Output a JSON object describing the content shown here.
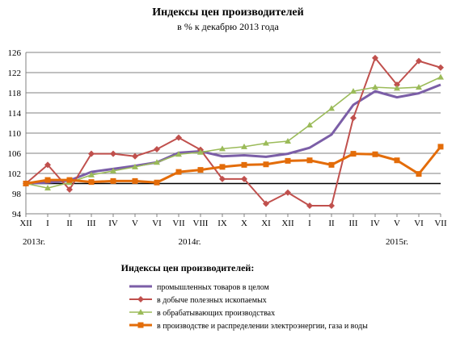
{
  "header": {
    "title": "Индексы цен производителей",
    "subtitle": "в % к декабрю 2013 года"
  },
  "chart_data": {
    "type": "line",
    "title": "Индексы цен производителей",
    "subtitle": "в % к декабрю 2013 года",
    "xlabel": "",
    "ylabel": "",
    "categories": [
      "XII",
      "I",
      "II",
      "III",
      "IV",
      "V",
      "VI",
      "VII",
      "VIII",
      "IX",
      "X",
      "XI",
      "XII",
      "I",
      "II",
      "III",
      "IV",
      "V",
      "VI",
      "VII"
    ],
    "year_labels": [
      {
        "label": "2013г.",
        "at_index": 0
      },
      {
        "label": "2014г.",
        "at_index": 7.5
      },
      {
        "label": "2015г.",
        "at_index": 17
      }
    ],
    "yticks": [
      94,
      98,
      102,
      106,
      110,
      114,
      118,
      122,
      126
    ],
    "ylim": [
      94,
      126
    ],
    "baseline": 100,
    "grid": true,
    "legend_title": "Индексы цен производителей:",
    "legend_position": "bottom",
    "series": [
      {
        "name": "промышленных товаров в целом",
        "color": "#7b5ea7",
        "marker": "none",
        "values": [
          100.0,
          100.2,
          100.6,
          102.3,
          102.9,
          103.5,
          104.2,
          106.1,
          106.4,
          105.4,
          105.6,
          105.3,
          105.9,
          107.1,
          109.7,
          115.6,
          118.3,
          117.1,
          117.9,
          119.6
        ]
      },
      {
        "name": "в добыче полезных ископаемых",
        "color": "#c0504d",
        "marker": "diamond",
        "values": [
          100.0,
          103.7,
          98.8,
          105.9,
          105.9,
          105.4,
          106.8,
          109.1,
          106.7,
          100.9,
          100.9,
          96.0,
          98.2,
          95.6,
          95.6,
          113.0,
          124.9,
          119.6,
          124.3,
          123.0
        ]
      },
      {
        "name": "в обрабатывающих производствах",
        "color": "#9bbb59",
        "marker": "triangle",
        "values": [
          100.0,
          99.1,
          100.2,
          101.7,
          102.5,
          103.3,
          104.2,
          105.8,
          106.2,
          106.9,
          107.3,
          108.0,
          108.4,
          111.6,
          114.9,
          118.3,
          119.1,
          118.9,
          119.1,
          121.1
        ]
      },
      {
        "name": "в производстве и распределении электроэнергии, газа и воды",
        "color": "#e36c09",
        "marker": "square",
        "values": [
          100.0,
          100.7,
          100.7,
          100.3,
          100.5,
          100.5,
          100.2,
          102.3,
          102.7,
          103.3,
          103.7,
          103.8,
          104.5,
          104.6,
          103.7,
          105.9,
          105.8,
          104.6,
          101.9,
          107.3
        ]
      }
    ]
  }
}
